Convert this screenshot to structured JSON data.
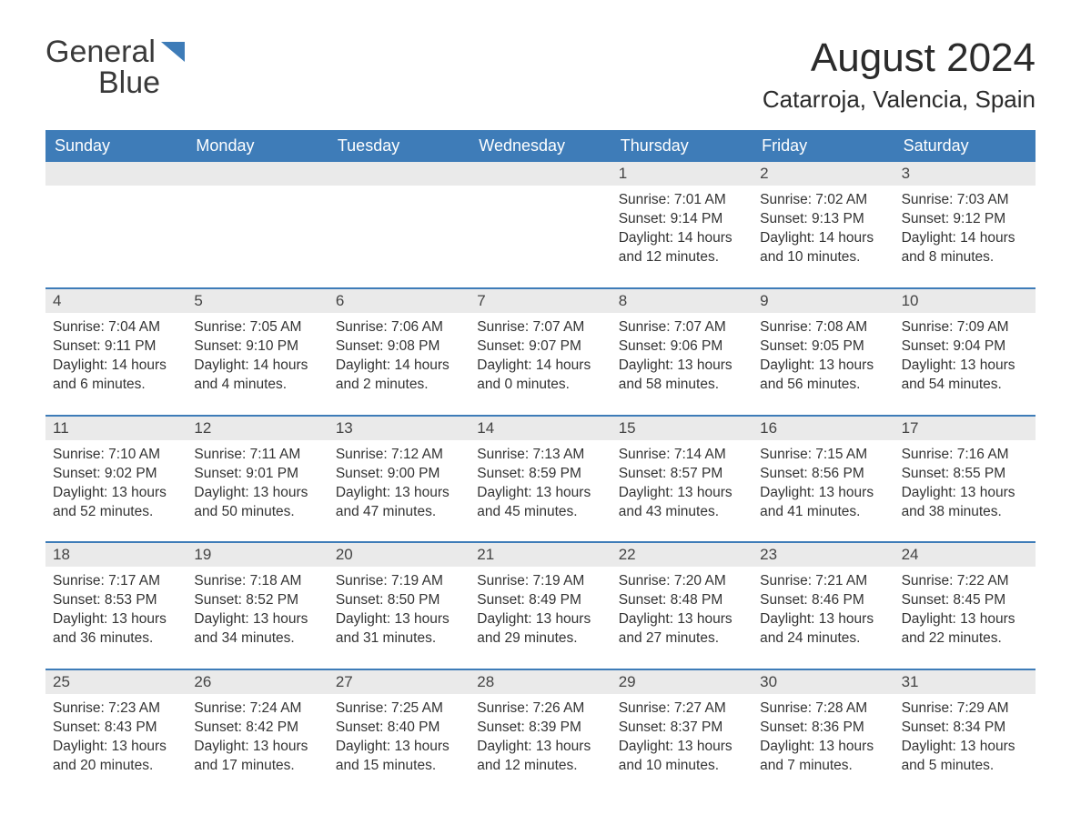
{
  "logo": {
    "text_general": "General",
    "text_blue": "Blue",
    "triangle_color": "#3e7cb8"
  },
  "title": {
    "month_year": "August 2024",
    "location": "Catarroja, Valencia, Spain"
  },
  "header_bg": "#3e7cb8",
  "header_fg": "#ffffff",
  "daynum_bg": "#eaeaea",
  "border_color": "#3e7cb8",
  "text_color": "#333333",
  "weekdays": [
    "Sunday",
    "Monday",
    "Tuesday",
    "Wednesday",
    "Thursday",
    "Friday",
    "Saturday"
  ],
  "weeks": [
    [
      {
        "num": "",
        "sunrise": "",
        "sunset": "",
        "daylight": ""
      },
      {
        "num": "",
        "sunrise": "",
        "sunset": "",
        "daylight": ""
      },
      {
        "num": "",
        "sunrise": "",
        "sunset": "",
        "daylight": ""
      },
      {
        "num": "",
        "sunrise": "",
        "sunset": "",
        "daylight": ""
      },
      {
        "num": "1",
        "sunrise": "Sunrise: 7:01 AM",
        "sunset": "Sunset: 9:14 PM",
        "daylight": "Daylight: 14 hours and 12 minutes."
      },
      {
        "num": "2",
        "sunrise": "Sunrise: 7:02 AM",
        "sunset": "Sunset: 9:13 PM",
        "daylight": "Daylight: 14 hours and 10 minutes."
      },
      {
        "num": "3",
        "sunrise": "Sunrise: 7:03 AM",
        "sunset": "Sunset: 9:12 PM",
        "daylight": "Daylight: 14 hours and 8 minutes."
      }
    ],
    [
      {
        "num": "4",
        "sunrise": "Sunrise: 7:04 AM",
        "sunset": "Sunset: 9:11 PM",
        "daylight": "Daylight: 14 hours and 6 minutes."
      },
      {
        "num": "5",
        "sunrise": "Sunrise: 7:05 AM",
        "sunset": "Sunset: 9:10 PM",
        "daylight": "Daylight: 14 hours and 4 minutes."
      },
      {
        "num": "6",
        "sunrise": "Sunrise: 7:06 AM",
        "sunset": "Sunset: 9:08 PM",
        "daylight": "Daylight: 14 hours and 2 minutes."
      },
      {
        "num": "7",
        "sunrise": "Sunrise: 7:07 AM",
        "sunset": "Sunset: 9:07 PM",
        "daylight": "Daylight: 14 hours and 0 minutes."
      },
      {
        "num": "8",
        "sunrise": "Sunrise: 7:07 AM",
        "sunset": "Sunset: 9:06 PM",
        "daylight": "Daylight: 13 hours and 58 minutes."
      },
      {
        "num": "9",
        "sunrise": "Sunrise: 7:08 AM",
        "sunset": "Sunset: 9:05 PM",
        "daylight": "Daylight: 13 hours and 56 minutes."
      },
      {
        "num": "10",
        "sunrise": "Sunrise: 7:09 AM",
        "sunset": "Sunset: 9:04 PM",
        "daylight": "Daylight: 13 hours and 54 minutes."
      }
    ],
    [
      {
        "num": "11",
        "sunrise": "Sunrise: 7:10 AM",
        "sunset": "Sunset: 9:02 PM",
        "daylight": "Daylight: 13 hours and 52 minutes."
      },
      {
        "num": "12",
        "sunrise": "Sunrise: 7:11 AM",
        "sunset": "Sunset: 9:01 PM",
        "daylight": "Daylight: 13 hours and 50 minutes."
      },
      {
        "num": "13",
        "sunrise": "Sunrise: 7:12 AM",
        "sunset": "Sunset: 9:00 PM",
        "daylight": "Daylight: 13 hours and 47 minutes."
      },
      {
        "num": "14",
        "sunrise": "Sunrise: 7:13 AM",
        "sunset": "Sunset: 8:59 PM",
        "daylight": "Daylight: 13 hours and 45 minutes."
      },
      {
        "num": "15",
        "sunrise": "Sunrise: 7:14 AM",
        "sunset": "Sunset: 8:57 PM",
        "daylight": "Daylight: 13 hours and 43 minutes."
      },
      {
        "num": "16",
        "sunrise": "Sunrise: 7:15 AM",
        "sunset": "Sunset: 8:56 PM",
        "daylight": "Daylight: 13 hours and 41 minutes."
      },
      {
        "num": "17",
        "sunrise": "Sunrise: 7:16 AM",
        "sunset": "Sunset: 8:55 PM",
        "daylight": "Daylight: 13 hours and 38 minutes."
      }
    ],
    [
      {
        "num": "18",
        "sunrise": "Sunrise: 7:17 AM",
        "sunset": "Sunset: 8:53 PM",
        "daylight": "Daylight: 13 hours and 36 minutes."
      },
      {
        "num": "19",
        "sunrise": "Sunrise: 7:18 AM",
        "sunset": "Sunset: 8:52 PM",
        "daylight": "Daylight: 13 hours and 34 minutes."
      },
      {
        "num": "20",
        "sunrise": "Sunrise: 7:19 AM",
        "sunset": "Sunset: 8:50 PM",
        "daylight": "Daylight: 13 hours and 31 minutes."
      },
      {
        "num": "21",
        "sunrise": "Sunrise: 7:19 AM",
        "sunset": "Sunset: 8:49 PM",
        "daylight": "Daylight: 13 hours and 29 minutes."
      },
      {
        "num": "22",
        "sunrise": "Sunrise: 7:20 AM",
        "sunset": "Sunset: 8:48 PM",
        "daylight": "Daylight: 13 hours and 27 minutes."
      },
      {
        "num": "23",
        "sunrise": "Sunrise: 7:21 AM",
        "sunset": "Sunset: 8:46 PM",
        "daylight": "Daylight: 13 hours and 24 minutes."
      },
      {
        "num": "24",
        "sunrise": "Sunrise: 7:22 AM",
        "sunset": "Sunset: 8:45 PM",
        "daylight": "Daylight: 13 hours and 22 minutes."
      }
    ],
    [
      {
        "num": "25",
        "sunrise": "Sunrise: 7:23 AM",
        "sunset": "Sunset: 8:43 PM",
        "daylight": "Daylight: 13 hours and 20 minutes."
      },
      {
        "num": "26",
        "sunrise": "Sunrise: 7:24 AM",
        "sunset": "Sunset: 8:42 PM",
        "daylight": "Daylight: 13 hours and 17 minutes."
      },
      {
        "num": "27",
        "sunrise": "Sunrise: 7:25 AM",
        "sunset": "Sunset: 8:40 PM",
        "daylight": "Daylight: 13 hours and 15 minutes."
      },
      {
        "num": "28",
        "sunrise": "Sunrise: 7:26 AM",
        "sunset": "Sunset: 8:39 PM",
        "daylight": "Daylight: 13 hours and 12 minutes."
      },
      {
        "num": "29",
        "sunrise": "Sunrise: 7:27 AM",
        "sunset": "Sunset: 8:37 PM",
        "daylight": "Daylight: 13 hours and 10 minutes."
      },
      {
        "num": "30",
        "sunrise": "Sunrise: 7:28 AM",
        "sunset": "Sunset: 8:36 PM",
        "daylight": "Daylight: 13 hours and 7 minutes."
      },
      {
        "num": "31",
        "sunrise": "Sunrise: 7:29 AM",
        "sunset": "Sunset: 8:34 PM",
        "daylight": "Daylight: 13 hours and 5 minutes."
      }
    ]
  ]
}
